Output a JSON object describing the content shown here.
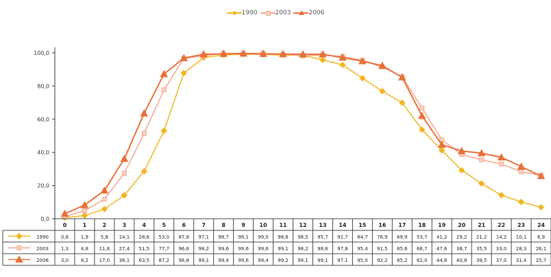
{
  "chart_data": {
    "type": "table",
    "x": [
      "0",
      "1",
      "2",
      "3",
      "4",
      "5",
      "6",
      "7",
      "8",
      "9",
      "10",
      "11",
      "12",
      "13",
      "14",
      "15",
      "16",
      "17",
      "18",
      "19",
      "20",
      "21",
      "22",
      "23",
      "24"
    ],
    "ylim": [
      0,
      100
    ],
    "yticks": [
      "0,0",
      "20,0",
      "40,0",
      "60,0",
      "80,0",
      "100,0"
    ],
    "legend_position": "top",
    "grid": false,
    "series": [
      {
        "name": "1990",
        "color": "#f2b51c",
        "marker": "diamond",
        "labels": [
          "0,6",
          "1,9",
          "5,8",
          "14,1",
          "28,6",
          "53,0",
          "87,8",
          "97,1",
          "98,7",
          "99,1",
          "99,0",
          "98,6",
          "98,5",
          "95,7",
          "92,7",
          "84,7",
          "76,9",
          "69,9",
          "53,7",
          "41,2",
          "29,2",
          "21,2",
          "14,2",
          "10,1",
          "6,9"
        ],
        "values": [
          0.6,
          1.9,
          5.8,
          14.1,
          28.6,
          53.0,
          87.8,
          97.1,
          98.7,
          99.1,
          99.0,
          98.6,
          98.5,
          95.7,
          92.7,
          84.7,
          76.9,
          69.9,
          53.7,
          41.2,
          29.2,
          21.2,
          14.2,
          10.1,
          6.9
        ]
      },
      {
        "name": "2003",
        "color": "#f4a58c",
        "marker": "square",
        "labels": [
          "1,3",
          "4,8",
          "11,8",
          "27,4",
          "51,5",
          "77,7",
          "96,6",
          "98,2",
          "99,6",
          "99,6",
          "99,6",
          "99,1",
          "98,2",
          "98,6",
          "97,8",
          "95,4",
          "91,5",
          "85,6",
          "66,7",
          "47,6",
          "38,7",
          "35,5",
          "33,0",
          "28,3",
          "26,1"
        ],
        "values": [
          1.3,
          4.8,
          11.8,
          27.4,
          51.5,
          77.7,
          96.6,
          98.2,
          99.6,
          99.6,
          99.6,
          99.1,
          98.2,
          98.6,
          97.8,
          95.4,
          91.5,
          85.6,
          66.7,
          47.6,
          38.7,
          35.5,
          33.0,
          28.3,
          26.1
        ]
      },
      {
        "name": "2006",
        "color": "#e8703a",
        "marker": "triangle",
        "labels": [
          "3,0",
          "8,2",
          "17,0",
          "36,1",
          "63,5",
          "87,2",
          "96,8",
          "99,1",
          "99,4",
          "99,6",
          "99,4",
          "99,2",
          "99,1",
          "99,1",
          "97,1",
          "95,0",
          "92,2",
          "85,2",
          "62,0",
          "44,6",
          "40,8",
          "39,5",
          "37,0",
          "31,4",
          "25,7"
        ],
        "values": [
          3.0,
          8.2,
          17.0,
          36.1,
          63.5,
          87.2,
          96.8,
          99.1,
          99.4,
          99.6,
          99.4,
          99.2,
          99.1,
          99.1,
          97.1,
          95.0,
          92.2,
          85.2,
          62.0,
          44.6,
          40.8,
          39.5,
          37.0,
          31.4,
          25.7
        ]
      }
    ]
  }
}
